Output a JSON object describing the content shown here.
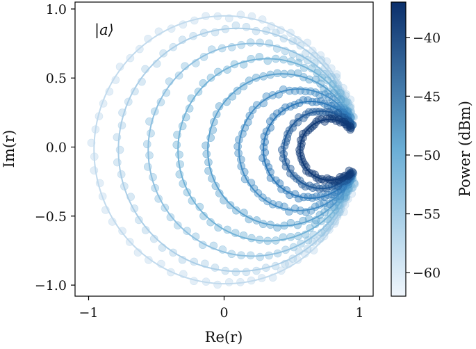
{
  "chart_data": {
    "type": "scatter",
    "title": "",
    "xlabel": "Re(r)",
    "ylabel": "Im(r)",
    "xlim": [
      -1.1,
      1.1
    ],
    "ylim": [
      -1.08,
      1.05
    ],
    "xticks": [
      -1,
      0,
      1
    ],
    "xtick_labels": [
      "−1",
      "0",
      "1"
    ],
    "yticks": [
      -1.0,
      -0.5,
      0.0,
      0.5,
      1.0
    ],
    "ytick_labels": [
      "−1.0",
      "−0.5",
      "0.0",
      "0.5",
      "1.0"
    ],
    "annotation": "|a⟩",
    "grid": false,
    "marker_style": "circle markers (data) with solid fitted lines",
    "description": "Resonator reflection circles in the complex plane; each circle corresponds to one drive power. Circles pass through (0.98, 0) and shrink as power increases.",
    "series": [
      {
        "name": "P=-62 dBm",
        "power_dbm": -62,
        "center_re": 0.01,
        "center_im": -0.02,
        "radius": 0.97,
        "opening_half_angle_deg": 14
      },
      {
        "name": "P=-59 dBm",
        "power_dbm": -59,
        "center_re": 0.1,
        "center_im": -0.02,
        "radius": 0.88,
        "opening_half_angle_deg": 16
      },
      {
        "name": "P=-56 dBm",
        "power_dbm": -56,
        "center_re": 0.21,
        "center_im": -0.02,
        "radius": 0.77,
        "opening_half_angle_deg": 18
      },
      {
        "name": "P=-53 dBm",
        "power_dbm": -53,
        "center_re": 0.32,
        "center_im": -0.02,
        "radius": 0.66,
        "opening_half_angle_deg": 20
      },
      {
        "name": "P=-50 dBm",
        "power_dbm": -50,
        "center_re": 0.43,
        "center_im": -0.02,
        "radius": 0.55,
        "opening_half_angle_deg": 22
      },
      {
        "name": "P=-47 dBm",
        "power_dbm": -47,
        "center_re": 0.55,
        "center_im": -0.02,
        "radius": 0.44,
        "opening_half_angle_deg": 26
      },
      {
        "name": "P=-44 dBm",
        "power_dbm": -44,
        "center_re": 0.64,
        "center_im": -0.02,
        "radius": 0.35,
        "opening_half_angle_deg": 30
      },
      {
        "name": "P=-41 dBm",
        "power_dbm": -41,
        "center_re": 0.72,
        "center_im": -0.02,
        "radius": 0.28,
        "opening_half_angle_deg": 36
      },
      {
        "name": "P=-38 dBm",
        "power_dbm": -38,
        "center_re": 0.78,
        "center_im": -0.02,
        "radius": 0.22,
        "opening_half_angle_deg": 44
      }
    ],
    "colorbar": {
      "label": "Power (dBm)",
      "vmin": -62,
      "vmax": -37,
      "ticks": [
        -40,
        -45,
        -50,
        -55,
        -60
      ],
      "tick_labels": [
        "−40",
        "−45",
        "−50",
        "−55",
        "−60"
      ],
      "colormap": "Blues",
      "color_low": "#f0f6fc",
      "color_high": "#0b2f6b"
    }
  }
}
